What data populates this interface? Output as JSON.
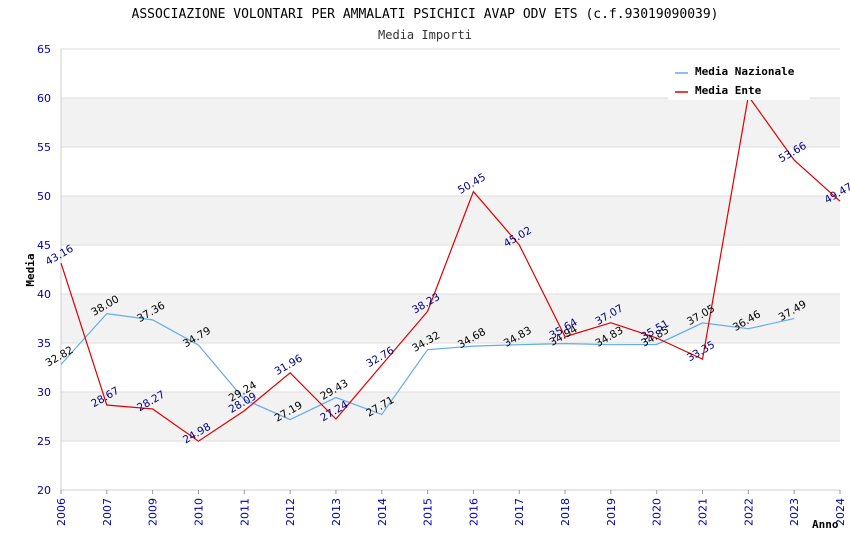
{
  "chart_data": {
    "type": "line",
    "title": "ASSOCIAZIONE VOLONTARI PER AMMALATI PSICHICI AVAP ODV ETS (c.f.93019090039)",
    "subtitle": "Media Importi",
    "xlabel": "Anno",
    "ylabel": "Media",
    "ylim": [
      20,
      65
    ],
    "yticks": [
      "20",
      "25",
      "30",
      "35",
      "40",
      "45",
      "50",
      "55",
      "60",
      "65"
    ],
    "categories": [
      "2006",
      "2007",
      "2009",
      "2010",
      "2011",
      "2012",
      "2013",
      "2014",
      "2015",
      "2016",
      "2017",
      "2018",
      "2019",
      "2020",
      "2021",
      "2022",
      "2023",
      "2024"
    ],
    "grid": true,
    "legend_position": "top-right",
    "series": [
      {
        "name": "Media Nazionale",
        "color": "#66aaee",
        "label_color": "#000000",
        "values": [
          32.82,
          38.0,
          37.36,
          34.79,
          29.24,
          27.19,
          29.43,
          27.71,
          34.32,
          34.68,
          34.83,
          34.94,
          34.83,
          34.85,
          37.05,
          36.46,
          37.49,
          null
        ],
        "labels": [
          "32.82",
          "38.00",
          "37.36",
          "34.79",
          "29.24",
          "27.19",
          "29.43",
          "27.71",
          "34.32",
          "34.68",
          "34.83",
          "34.94",
          "34.83",
          "34.85",
          "37.05",
          "36.46",
          "37.49",
          null
        ]
      },
      {
        "name": "Media Ente",
        "color": "#dd0000",
        "label_color": "#000080",
        "values": [
          43.16,
          28.67,
          28.27,
          24.98,
          28.09,
          31.96,
          27.24,
          32.76,
          38.23,
          50.45,
          45.02,
          35.64,
          37.07,
          35.51,
          33.35,
          60.2,
          53.66,
          49.47
        ],
        "labels": [
          "43.16",
          "28.67",
          "28.27",
          "24.98",
          "28.09",
          "31.96",
          "27.24",
          "32.76",
          "38.23",
          "50.45",
          "45.02",
          "35.64",
          "37.07",
          "35.51",
          "33.35",
          null,
          "53.66",
          "49.47"
        ]
      }
    ]
  }
}
